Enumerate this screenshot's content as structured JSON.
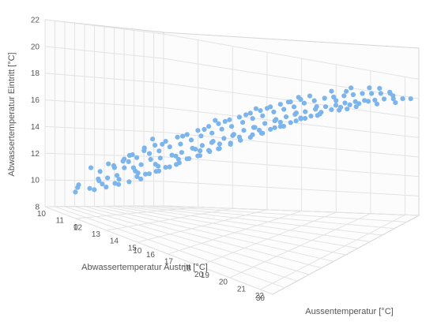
{
  "chart_data": {
    "type": "scatter",
    "projection": "3d",
    "title": "",
    "xlabel": "Aussentemperatur [°C]",
    "ylabel": "Abwassertemperatur Eintritt [°C]",
    "zlabel": "Abwassertemperatur Austritt [°C]",
    "xlim": [
      -5,
      32
    ],
    "ylim": [
      8,
      22
    ],
    "zlim": [
      10,
      22
    ],
    "x_ticks": [
      "0",
      "10",
      "20",
      "30"
    ],
    "y_ticks": [
      "8",
      "10",
      "12",
      "14",
      "16",
      "18",
      "20",
      "22"
    ],
    "z_ticks": [
      "10",
      "11",
      "12",
      "13",
      "14",
      "15",
      "16",
      "17",
      "18",
      "19",
      "20",
      "21",
      "22"
    ],
    "grid": true,
    "legend": "none",
    "colors": {
      "marker": "#7cb5ec",
      "grid": "#e3e3e3",
      "frame": "#d5d5d5",
      "text": "#555555"
    },
    "series": [
      {
        "name": "",
        "points": [
          [
            -3,
            9.4,
            11.8
          ],
          [
            -2,
            9.8,
            12.6
          ],
          [
            -2,
            10.1,
            11.5
          ],
          [
            -1,
            10.5,
            12.9
          ],
          [
            -1,
            10.0,
            13.6
          ],
          [
            -1,
            11.2,
            13.0
          ],
          [
            0,
            10.8,
            12.2
          ],
          [
            0,
            11.6,
            13.8
          ],
          [
            0,
            10.3,
            14.2
          ],
          [
            1,
            11.0,
            12.5
          ],
          [
            1,
            11.9,
            13.1
          ],
          [
            1,
            10.6,
            14.6
          ],
          [
            1,
            12.2,
            14.0
          ],
          [
            2,
            11.3,
            12.8
          ],
          [
            2,
            12.5,
            13.5
          ],
          [
            2,
            10.9,
            15.1
          ],
          [
            2,
            11.8,
            14.4
          ],
          [
            3,
            12.0,
            12.9
          ],
          [
            3,
            12.7,
            14.1
          ],
          [
            3,
            11.4,
            15.3
          ],
          [
            3,
            12.9,
            13.4
          ],
          [
            4,
            12.3,
            13.9
          ],
          [
            4,
            13.1,
            14.7
          ],
          [
            4,
            11.7,
            15.6
          ],
          [
            4,
            12.6,
            12.7
          ],
          [
            5,
            12.8,
            14.2
          ],
          [
            5,
            13.4,
            15.0
          ],
          [
            5,
            12.1,
            16.0
          ],
          [
            5,
            13.7,
            13.6
          ],
          [
            6,
            13.0,
            14.5
          ],
          [
            6,
            13.8,
            15.4
          ],
          [
            6,
            12.5,
            16.3
          ],
          [
            6,
            14.0,
            14.0
          ],
          [
            7,
            13.3,
            15.0
          ],
          [
            7,
            14.1,
            15.8
          ],
          [
            7,
            12.9,
            16.6
          ],
          [
            7,
            14.4,
            14.4
          ],
          [
            8,
            13.6,
            15.3
          ],
          [
            8,
            14.5,
            16.2
          ],
          [
            8,
            13.2,
            17.0
          ],
          [
            8,
            14.8,
            14.9
          ],
          [
            9,
            14.0,
            15.7
          ],
          [
            9,
            14.9,
            16.5
          ],
          [
            9,
            13.6,
            17.3
          ],
          [
            9,
            15.1,
            15.2
          ],
          [
            10,
            14.3,
            16.0
          ],
          [
            10,
            15.2,
            16.9
          ],
          [
            10,
            13.9,
            17.6
          ],
          [
            10,
            15.5,
            15.6
          ],
          [
            11,
            14.7,
            16.4
          ],
          [
            11,
            15.6,
            17.2
          ],
          [
            11,
            14.3,
            18.0
          ],
          [
            11,
            15.9,
            16.0
          ],
          [
            12,
            15.0,
            16.8
          ],
          [
            12,
            15.9,
            17.5
          ],
          [
            12,
            14.7,
            18.3
          ],
          [
            12,
            16.2,
            16.3
          ],
          [
            13,
            15.4,
            17.1
          ],
          [
            13,
            16.3,
            17.9
          ],
          [
            13,
            15.0,
            18.6
          ],
          [
            13,
            16.6,
            16.7
          ],
          [
            14,
            15.8,
            17.4
          ],
          [
            14,
            16.7,
            18.2
          ],
          [
            14,
            15.4,
            19.0
          ],
          [
            14,
            16.9,
            17.0
          ],
          [
            15,
            16.1,
            17.8
          ],
          [
            15,
            17.0,
            18.5
          ],
          [
            15,
            15.8,
            19.2
          ],
          [
            15,
            17.3,
            17.4
          ],
          [
            16,
            16.5,
            18.1
          ],
          [
            16,
            17.4,
            18.9
          ],
          [
            16,
            16.1,
            19.5
          ],
          [
            16,
            17.6,
            17.7
          ],
          [
            17,
            16.8,
            18.4
          ],
          [
            17,
            17.7,
            19.2
          ],
          [
            17,
            16.5,
            19.8
          ],
          [
            17,
            18.0,
            18.0
          ],
          [
            18,
            17.2,
            18.8
          ],
          [
            18,
            18.0,
            19.5
          ],
          [
            18,
            16.9,
            20.1
          ],
          [
            18,
            18.3,
            18.3
          ],
          [
            19,
            17.5,
            19.0
          ],
          [
            19,
            18.4,
            19.8
          ],
          [
            19,
            17.2,
            20.4
          ],
          [
            19,
            18.6,
            18.6
          ],
          [
            20,
            17.8,
            19.3
          ],
          [
            20,
            18.7,
            20.1
          ],
          [
            20,
            17.6,
            20.7
          ],
          [
            20,
            18.9,
            18.9
          ],
          [
            21,
            18.1,
            19.6
          ],
          [
            21,
            19.0,
            20.4
          ],
          [
            21,
            17.9,
            21.0
          ],
          [
            22,
            18.4,
            19.9
          ],
          [
            22,
            19.2,
            20.6
          ],
          [
            22,
            18.2,
            21.2
          ],
          [
            23,
            18.6,
            20.2
          ],
          [
            23,
            19.4,
            20.9
          ],
          [
            23,
            18.5,
            21.4
          ],
          [
            24,
            18.9,
            20.4
          ],
          [
            24,
            19.6,
            21.1
          ],
          [
            24,
            18.7,
            21.6
          ],
          [
            25,
            19.1,
            20.7
          ],
          [
            25,
            19.8,
            21.3
          ],
          [
            25,
            19.0,
            21.8
          ],
          [
            26,
            19.3,
            20.9
          ],
          [
            26,
            19.9,
            21.5
          ],
          [
            27,
            19.4,
            21.2
          ],
          [
            27,
            20.0,
            21.7
          ],
          [
            28,
            19.6,
            21.4
          ],
          [
            28,
            20.1,
            21.9
          ],
          [
            29,
            19.7,
            21.6
          ],
          [
            30,
            19.8,
            21.8
          ],
          [
            30,
            20.2,
            21.0
          ],
          [
            31,
            19.9,
            21.9
          ],
          [
            26,
            18.8,
            20.2
          ],
          [
            24,
            18.3,
            19.9
          ],
          [
            22,
            17.8,
            19.4
          ],
          [
            20,
            17.3,
            18.9
          ],
          [
            18,
            16.8,
            18.3
          ],
          [
            16,
            16.0,
            17.6
          ],
          [
            14,
            15.3,
            17.0
          ],
          [
            12,
            14.6,
            16.4
          ],
          [
            10,
            13.9,
            15.8
          ],
          [
            8,
            13.1,
            15.0
          ],
          [
            6,
            12.4,
            14.3
          ],
          [
            4,
            11.7,
            13.6
          ],
          [
            2,
            11.0,
            13.0
          ],
          [
            0,
            10.4,
            12.6
          ],
          [
            -2,
            9.9,
            11.4
          ],
          [
            3,
            13.2,
            14.8
          ],
          [
            5,
            13.9,
            15.3
          ],
          [
            7,
            14.7,
            16.0
          ],
          [
            9,
            15.4,
            16.8
          ],
          [
            11,
            16.2,
            17.5
          ],
          [
            13,
            16.9,
            18.2
          ],
          [
            15,
            17.6,
            18.9
          ],
          [
            17,
            18.3,
            19.6
          ],
          [
            19,
            19.0,
            20.3
          ],
          [
            21,
            19.6,
            21.0
          ],
          [
            23,
            20.1,
            21.5
          ],
          [
            25,
            20.3,
            21.9
          ],
          [
            6,
            11.9,
            13.1
          ],
          [
            8,
            12.6,
            13.8
          ],
          [
            10,
            13.4,
            14.6
          ],
          [
            12,
            14.2,
            15.4
          ],
          [
            14,
            14.9,
            16.2
          ],
          [
            16,
            15.7,
            17.0
          ],
          [
            18,
            16.4,
            17.8
          ],
          [
            20,
            17.1,
            18.5
          ],
          [
            22,
            17.7,
            19.2
          ],
          [
            9,
            14.3,
            17.5
          ],
          [
            11,
            15.0,
            18.2
          ],
          [
            13,
            15.8,
            18.9
          ],
          [
            15,
            16.6,
            19.7
          ],
          [
            17,
            17.3,
            20.3
          ],
          [
            19,
            18.0,
            20.9
          ],
          [
            21,
            18.7,
            21.4
          ],
          [
            7,
            13.6,
            17.2
          ],
          [
            5,
            12.9,
            16.6
          ],
          [
            3,
            12.1,
            15.9
          ],
          [
            1,
            11.4,
            15.2
          ],
          [
            4,
            14.2,
            15.0
          ],
          [
            10,
            16.2,
            17.2
          ],
          [
            14,
            17.5,
            18.5
          ],
          [
            18,
            18.8,
            19.9
          ],
          [
            23,
            19.8,
            21.1
          ],
          [
            27,
            20.5,
            21.6
          ],
          [
            29,
            20.4,
            21.3
          ],
          [
            2,
            12.8,
            14.3
          ],
          [
            0,
            11.9,
            13.2
          ],
          [
            -1,
            11.5,
            12.1
          ],
          [
            1,
            10.2,
            11.2
          ],
          [
            3,
            10.9,
            12.0
          ],
          [
            5,
            11.6,
            12.9
          ],
          [
            7,
            12.2,
            13.5
          ],
          [
            9,
            12.9,
            14.2
          ],
          [
            11,
            13.7,
            15.0
          ],
          [
            13,
            14.4,
            15.7
          ],
          [
            15,
            15.2,
            16.5
          ],
          [
            17,
            15.9,
            17.3
          ],
          [
            19,
            16.6,
            18.0
          ],
          [
            21,
            17.4,
            18.7
          ],
          [
            25,
            18.5,
            20.0
          ],
          [
            28,
            19.2,
            20.8
          ],
          [
            30,
            19.5,
            21.2
          ]
        ]
      }
    ]
  }
}
